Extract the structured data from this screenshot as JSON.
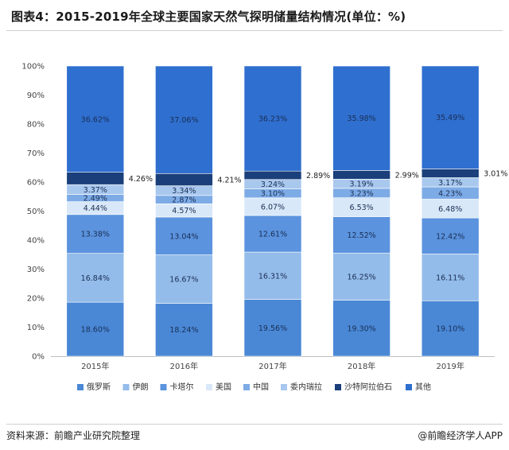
{
  "title": "图表4：2015-2019年全球主要国家天然气探明储量结构情况(单位：%)",
  "source": "资料来源：前瞻产业研究院整理",
  "brand": "@前瞻经济学人APP",
  "chart_data": {
    "type": "bar",
    "stacked": true,
    "categories": [
      "2015年",
      "2016年",
      "2017年",
      "2018年",
      "2019年"
    ],
    "ylim": [
      0,
      100
    ],
    "yticks": [
      "0%",
      "10%",
      "20%",
      "30%",
      "40%",
      "50%",
      "60%",
      "70%",
      "80%",
      "90%",
      "100%"
    ],
    "legend_position": "bottom",
    "series": [
      {
        "name": "俄罗斯",
        "color": "#4a88d6",
        "values": [
          18.6,
          18.24,
          19.56,
          19.3,
          19.1
        ]
      },
      {
        "name": "伊朗",
        "color": "#94bcea",
        "values": [
          16.84,
          16.67,
          16.31,
          16.25,
          16.11
        ]
      },
      {
        "name": "卡塔尔",
        "color": "#5b93de",
        "values": [
          13.38,
          13.04,
          12.61,
          12.52,
          12.42
        ]
      },
      {
        "name": "美国",
        "color": "#d9e8f8",
        "values": [
          4.44,
          4.57,
          6.07,
          6.53,
          6.48
        ]
      },
      {
        "name": "中国",
        "color": "#7dabe6",
        "values": [
          2.49,
          2.87,
          3.1,
          3.23,
          4.23
        ]
      },
      {
        "name": "委内瑞拉",
        "color": "#a9c8ee",
        "values": [
          3.37,
          3.34,
          3.24,
          3.19,
          3.17
        ]
      },
      {
        "name": "沙特阿拉伯石",
        "color": "#1a3f7a",
        "values": [
          4.26,
          4.21,
          2.89,
          2.99,
          3.01
        ]
      },
      {
        "name": "其他",
        "color": "#2f6fd0",
        "values": [
          36.62,
          37.06,
          36.23,
          35.98,
          35.49
        ]
      }
    ],
    "labels": [
      [
        "18.60%",
        "18.24%",
        "19.56%",
        "19.30%",
        "19.10%"
      ],
      [
        "16.84%",
        "16.67%",
        "16.31%",
        "16.25%",
        "16.11%"
      ],
      [
        "13.38%",
        "13.04%",
        "12.61%",
        "12.52%",
        "12.42%"
      ],
      [
        "4.44%",
        "4.57%",
        "6.07%",
        "6.53%",
        "6.48%"
      ],
      [
        "2.49%",
        "2.87%",
        "3.10%",
        "3.23%",
        "4.23%"
      ],
      [
        "3.37%",
        "3.34%",
        "3.24%",
        "3.19%",
        "3.17%"
      ],
      [
        "4.26%",
        "4.21%",
        "2.89%",
        "2.99%",
        "3.01%"
      ],
      [
        "36.62%",
        "37.06%",
        "36.23%",
        "35.98%",
        "35.49%"
      ]
    ]
  }
}
